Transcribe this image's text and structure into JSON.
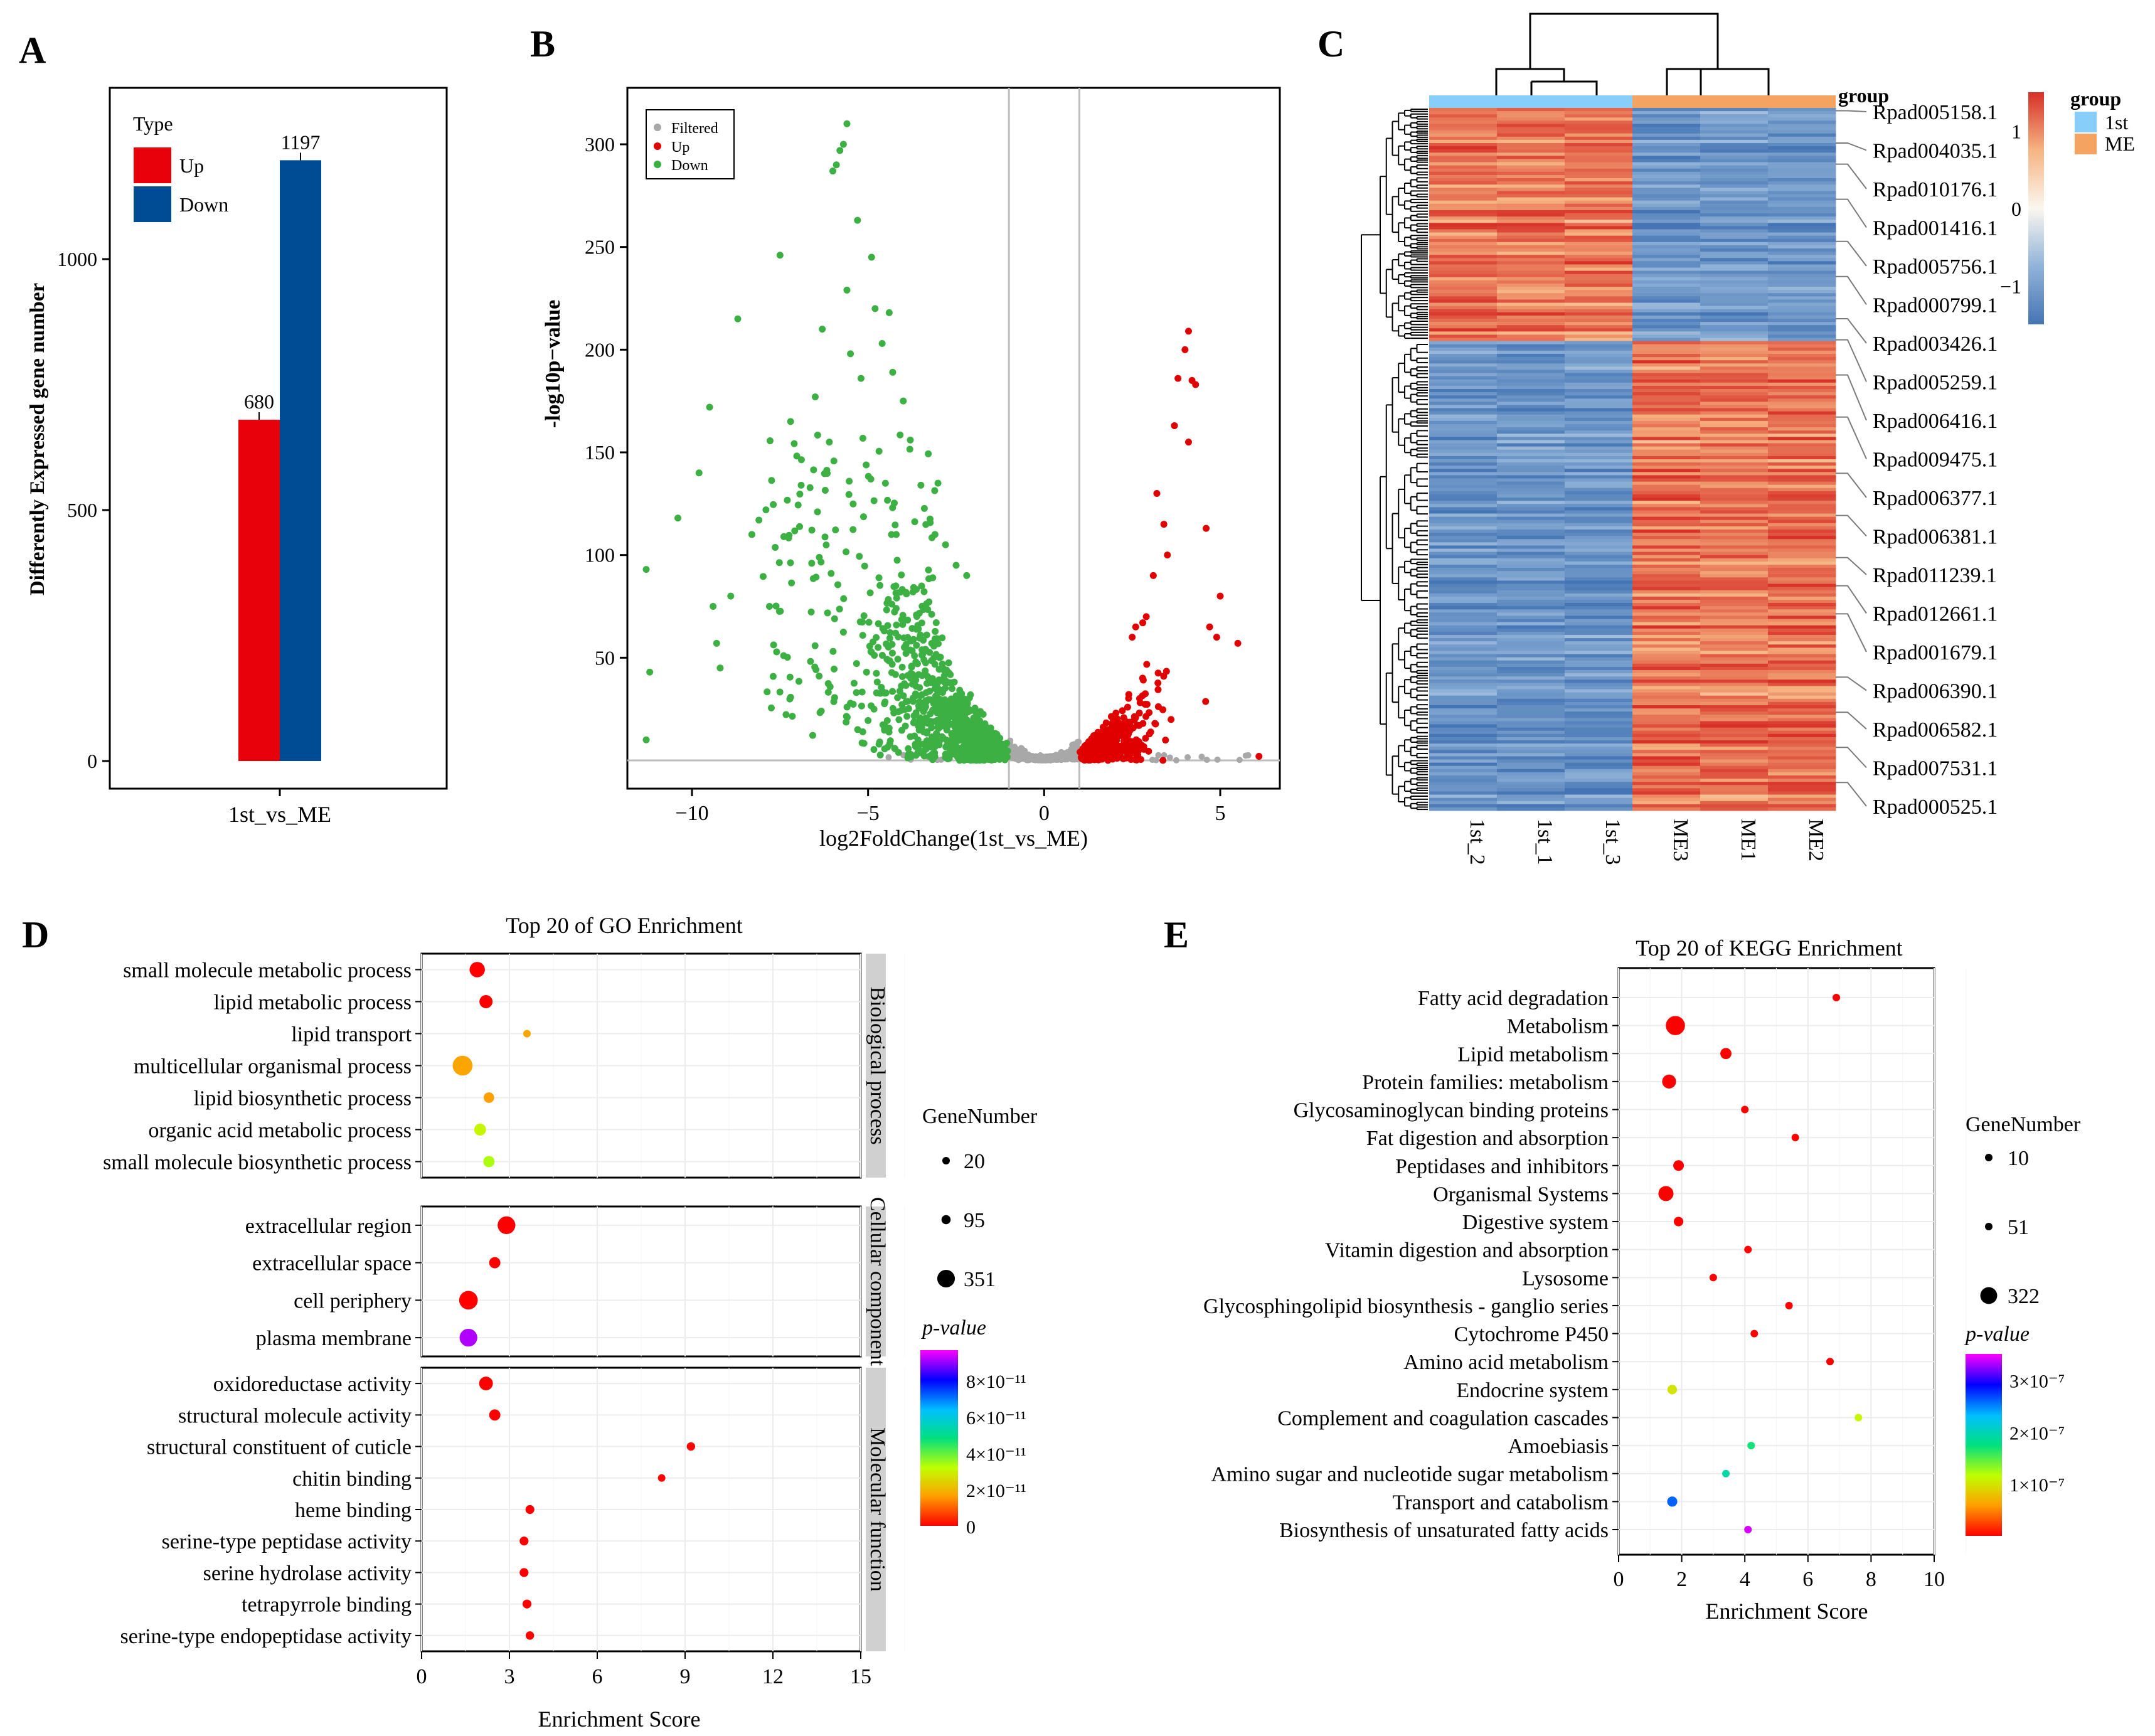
{
  "colors": {
    "up": "#e8000b",
    "down": "#004c94",
    "filtered": "#a8a8a8",
    "volcano_up": "#e00000",
    "volcano_down": "#3cb043",
    "heat_high": "#d73027",
    "heat_mid": "#fbf7f0",
    "heat_low": "#4575b4",
    "group_1st": "#87cefa",
    "group_me": "#f4a460"
  },
  "panel_labels": {
    "a": "A",
    "b": "B",
    "c": "C",
    "d": "D",
    "e": "E"
  },
  "chart_data": [
    {
      "id": "A",
      "type": "bar",
      "categories": [
        "1st_vs_ME"
      ],
      "series": [
        {
          "name": "Up",
          "values": [
            680
          ]
        },
        {
          "name": "Down",
          "values": [
            1197
          ]
        }
      ],
      "ylabel": "Differently Expressed gene number",
      "xlabel": "",
      "ylim": [
        0,
        1300
      ],
      "yticks": [
        0,
        500,
        1000
      ],
      "legend_title": "Type",
      "legend_position": "top-left"
    },
    {
      "id": "B",
      "type": "scatter",
      "xlabel": "log2FoldChange(1st_vs_ME)",
      "ylabel": "-log10p−value",
      "xlim": [
        -12,
        7
      ],
      "ylim": [
        -10,
        325
      ],
      "xticks": [
        "−10",
        "−5",
        "0",
        "5"
      ],
      "xtick_values": [
        -10,
        -5,
        0,
        5
      ],
      "yticks": [
        50,
        100,
        150,
        200,
        250,
        300
      ],
      "thresholds_x": [
        -1,
        1
      ],
      "legend": [
        "Filtered",
        "Up",
        "Down"
      ],
      "legend_position": "top-left",
      "series": [
        {
          "name": "Up",
          "n_points": 680,
          "x_range": [
            1,
            6.1
          ],
          "y_max": 209
        },
        {
          "name": "Down",
          "n_points": 1197,
          "x_range": [
            -11.3,
            -1
          ],
          "y_max": 310
        },
        {
          "name": "Filtered",
          "x_range": [
            -5,
            6
          ],
          "y_max": 20
        }
      ],
      "highlight_points": {
        "down": [
          [
            -11.3,
            93
          ],
          [
            -11.2,
            43
          ],
          [
            -11.3,
            10
          ],
          [
            -10.4,
            118
          ],
          [
            -9.8,
            140
          ],
          [
            -9.5,
            172
          ],
          [
            -9.4,
            75
          ],
          [
            -9.3,
            57
          ],
          [
            -9.2,
            45
          ],
          [
            -8.9,
            80
          ],
          [
            -8.7,
            215
          ],
          [
            -8.3,
            110
          ],
          [
            -8.1,
            117
          ],
          [
            -7.9,
            122
          ],
          [
            -7.8,
            75
          ],
          [
            -7.5,
            246
          ],
          [
            -7.2,
            165
          ],
          [
            -6.9,
            134
          ],
          [
            -6.6,
            96
          ],
          [
            -6.5,
            177
          ],
          [
            -6.3,
            210
          ],
          [
            -6.1,
            155
          ],
          [
            -6.0,
            287
          ],
          [
            -5.9,
            290
          ],
          [
            -5.8,
            297
          ],
          [
            -5.7,
            300
          ],
          [
            -5.6,
            310
          ],
          [
            -5.6,
            229
          ],
          [
            -5.5,
            198
          ],
          [
            -5.3,
            263
          ],
          [
            -5.2,
            186
          ],
          [
            -4.9,
            245
          ],
          [
            -4.8,
            220
          ],
          [
            -4.6,
            203
          ],
          [
            -4.4,
            218
          ],
          [
            -4.3,
            189
          ],
          [
            -4.0,
            175
          ],
          [
            -4.2,
            110
          ],
          [
            -3.8,
            156
          ],
          [
            -3.5,
            134
          ],
          [
            -3.1,
            110
          ],
          [
            -2.8,
            105
          ],
          [
            -2.5,
            95
          ],
          [
            -2.2,
            90
          ]
        ],
        "up": [
          [
            4.1,
            209
          ],
          [
            4.0,
            200
          ],
          [
            3.8,
            186
          ],
          [
            4.2,
            185
          ],
          [
            4.3,
            183
          ],
          [
            3.7,
            163
          ],
          [
            4.1,
            155
          ],
          [
            3.2,
            130
          ],
          [
            3.4,
            115
          ],
          [
            3.5,
            100
          ],
          [
            4.6,
            113
          ],
          [
            3.1,
            90
          ],
          [
            5.0,
            80
          ],
          [
            4.7,
            65
          ],
          [
            5.5,
            57
          ],
          [
            4.9,
            60
          ],
          [
            6.1,
            2
          ],
          [
            2.6,
            65
          ],
          [
            2.8,
            67
          ],
          [
            2.5,
            60
          ],
          [
            2.9,
            70
          ]
        ]
      }
    },
    {
      "id": "C",
      "type": "heatmap",
      "columns": [
        "1st_2",
        "1st_1",
        "1st_3",
        "ME3",
        "ME1",
        "ME2"
      ],
      "column_groups": [
        "1st",
        "1st",
        "1st",
        "ME",
        "ME",
        "ME"
      ],
      "group_label": "group",
      "legend_title": "group",
      "legend_groups": [
        "1st",
        "ME"
      ],
      "colorbar_ticks": [
        "1",
        "0",
        "−1"
      ],
      "colorbar_values": [
        1,
        0,
        -1
      ],
      "n_rows": 1877,
      "upper_block_fraction": 0.33,
      "row_labels": [
        "Rpad005158.1",
        "Rpad004035.1",
        "Rpad010176.1",
        "Rpad001416.1",
        "Rpad005756.1",
        "Rpad000799.1",
        "Rpad003426.1",
        "Rpad005259.1",
        "Rpad006416.1",
        "Rpad009475.1",
        "Rpad006377.1",
        "Rpad006381.1",
        "Rpad011239.1",
        "Rpad012661.1",
        "Rpad001679.1",
        "Rpad006390.1",
        "Rpad006582.1",
        "Rpad007531.1",
        "Rpad000525.1"
      ],
      "row_label_anchor_fractions": [
        0.004,
        0.05,
        0.08,
        0.13,
        0.19,
        0.24,
        0.3,
        0.33,
        0.38,
        0.44,
        0.52,
        0.58,
        0.64,
        0.68,
        0.72,
        0.81,
        0.86,
        0.91,
        0.96
      ]
    },
    {
      "id": "D",
      "type": "scatter",
      "title": "Top 20 of GO Enrichment",
      "xlabel": "Enrichment Score",
      "xlim": [
        0,
        15
      ],
      "xticks": [
        0,
        3,
        6,
        9,
        12,
        15
      ],
      "size_legend_title": "GeneNumber",
      "size_legend": [
        20,
        95,
        351
      ],
      "color_legend_title": "p-value",
      "color_ticks": [
        "8×10⁻¹¹",
        "6×10⁻¹¹",
        "4×10⁻¹¹",
        "2×10⁻¹¹",
        "0"
      ],
      "facets": [
        {
          "name": "Biological process",
          "terms": [
            {
              "term": "small molecule metabolic process",
              "x": 1.9,
              "size": 150,
              "p": 0
            },
            {
              "term": "lipid metabolic process",
              "x": 2.2,
              "size": 110,
              "p": 0
            },
            {
              "term": "lipid transport",
              "x": 3.6,
              "size": 35,
              "p": 1.7e-11
            },
            {
              "term": "multicellular organismal process",
              "x": 1.4,
              "size": 250,
              "p": 1.7e-11
            },
            {
              "term": "lipid biosynthetic process",
              "x": 2.3,
              "size": 70,
              "p": 1.6e-11
            },
            {
              "term": "organic acid metabolic process",
              "x": 2.0,
              "size": 90,
              "p": 3e-11
            },
            {
              "term": "small molecule biosynthetic process",
              "x": 2.3,
              "size": 80,
              "p": 3.3e-11
            }
          ]
        },
        {
          "name": "Cellular component",
          "terms": [
            {
              "term": "extracellular region",
              "x": 2.9,
              "size": 200,
              "p": 0
            },
            {
              "term": "extracellular space",
              "x": 2.5,
              "size": 80,
              "p": 0
            },
            {
              "term": "cell periphery",
              "x": 1.6,
              "size": 220,
              "p": 0
            },
            {
              "term": "plasma membrane",
              "x": 1.6,
              "size": 200,
              "p": 9e-11
            }
          ]
        },
        {
          "name": "Molecular function",
          "terms": [
            {
              "term": "oxidoreductase activity",
              "x": 2.2,
              "size": 120,
              "p": 0
            },
            {
              "term": "structural molecule activity",
              "x": 2.5,
              "size": 80,
              "p": 0
            },
            {
              "term": "structural constituent of cuticle",
              "x": 9.2,
              "size": 45,
              "p": 0
            },
            {
              "term": "chitin binding",
              "x": 8.2,
              "size": 35,
              "p": 0
            },
            {
              "term": "heme binding",
              "x": 3.7,
              "size": 50,
              "p": 0
            },
            {
              "term": "serine-type peptidase activity",
              "x": 3.5,
              "size": 50,
              "p": 0
            },
            {
              "term": "serine hydrolase activity",
              "x": 3.5,
              "size": 50,
              "p": 0
            },
            {
              "term": "tetrapyrrole binding",
              "x": 3.6,
              "size": 50,
              "p": 0
            },
            {
              "term": "serine-type endopeptidase activity",
              "x": 3.7,
              "size": 45,
              "p": 0
            }
          ]
        }
      ]
    },
    {
      "id": "E",
      "type": "scatter",
      "title": "Top 20 of KEGG Enrichment",
      "xlabel": "Enrichment Score",
      "xlim": [
        0,
        10
      ],
      "xticks": [
        0,
        2,
        4,
        6,
        8,
        10
      ],
      "size_legend_title": "GeneNumber",
      "size_legend": [
        10,
        51,
        322
      ],
      "color_legend_title": "p-value",
      "color_ticks": [
        "3×10⁻⁷",
        "2×10⁻⁷",
        "1×10⁻⁷"
      ],
      "terms": [
        {
          "term": "Fatty acid degradation",
          "x": 6.9,
          "size": 20,
          "p": 0
        },
        {
          "term": "Metabolism",
          "x": 1.8,
          "size": 322,
          "p": 0
        },
        {
          "term": "Lipid metabolism",
          "x": 3.4,
          "size": 110,
          "p": 0
        },
        {
          "term": "Protein families: metabolism",
          "x": 1.6,
          "size": 170,
          "p": 0
        },
        {
          "term": "Glycosaminoglycan binding proteins",
          "x": 4.0,
          "size": 20,
          "p": 0
        },
        {
          "term": "Fat digestion and absorption",
          "x": 5.6,
          "size": 20,
          "p": 0
        },
        {
          "term": "Peptidases and inhibitors",
          "x": 1.9,
          "size": 100,
          "p": 0
        },
        {
          "term": "Organismal Systems",
          "x": 1.5,
          "size": 200,
          "p": 0
        },
        {
          "term": "Digestive system",
          "x": 1.9,
          "size": 80,
          "p": 0
        },
        {
          "term": "Vitamin digestion and absorption",
          "x": 4.1,
          "size": 20,
          "p": 0
        },
        {
          "term": "Lysosome",
          "x": 3.0,
          "size": 25,
          "p": 0
        },
        {
          "term": "Glycosphingolipid biosynthesis - ganglio series",
          "x": 5.4,
          "size": 15,
          "p": 0
        },
        {
          "term": "Cytochrome P450",
          "x": 4.3,
          "size": 20,
          "p": 0
        },
        {
          "term": "Amino acid metabolism",
          "x": 6.7,
          "size": 15,
          "p": 0
        },
        {
          "term": "Endocrine system",
          "x": 1.7,
          "size": 80,
          "p": 1e-07
        },
        {
          "term": "Complement and coagulation cascades",
          "x": 7.6,
          "size": 15,
          "p": 1.1e-07
        },
        {
          "term": "Amoebiasis",
          "x": 4.2,
          "size": 15,
          "p": 1.7e-07
        },
        {
          "term": "Amino sugar and nucleotide sugar metabolism",
          "x": 3.4,
          "size": 20,
          "p": 1.9e-07
        },
        {
          "term": "Transport and catabolism",
          "x": 1.7,
          "size": 90,
          "p": 2.6e-07
        },
        {
          "term": "Biosynthesis of unsaturated fatty acids",
          "x": 4.1,
          "size": 15,
          "p": 3.4e-07
        }
      ]
    }
  ]
}
